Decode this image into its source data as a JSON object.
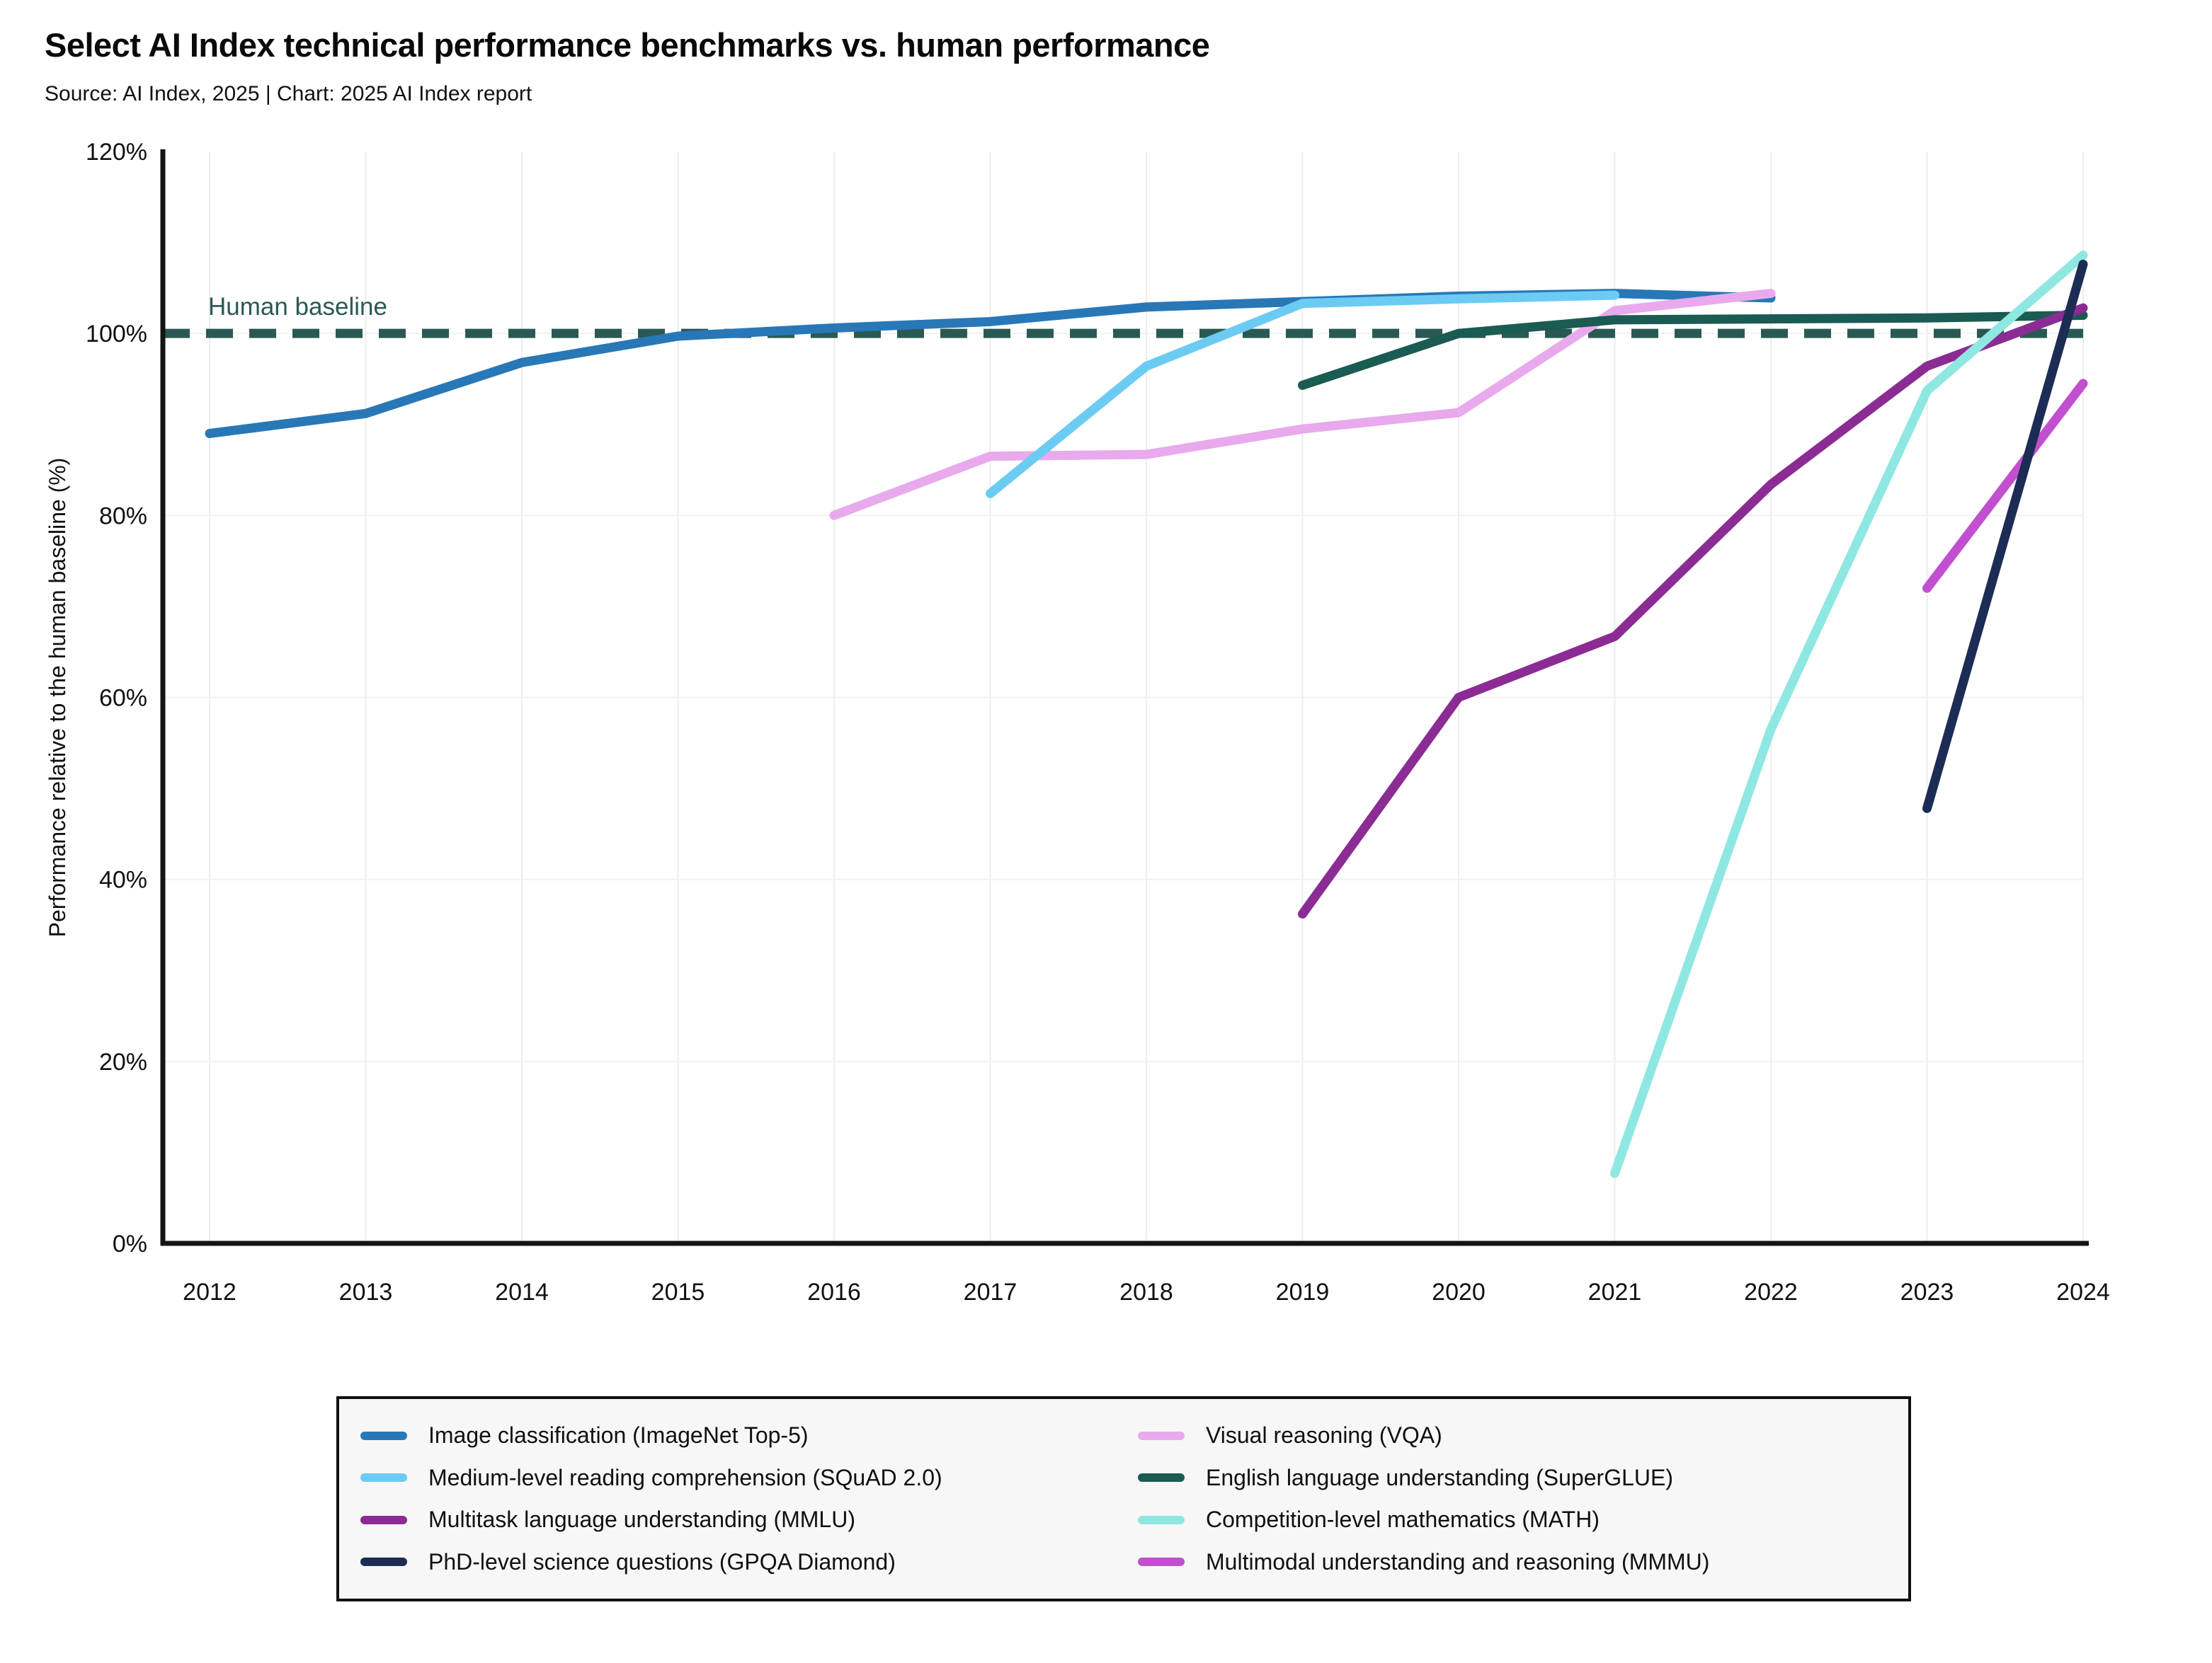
{
  "header": {
    "title": "Select AI Index technical performance benchmarks vs. human performance",
    "subtitle": "Source: AI Index, 2025 | Chart: 2025 AI Index report"
  },
  "chart_data": {
    "type": "line",
    "title": "Select AI Index technical performance benchmarks vs. human performance",
    "xlabel": "",
    "ylabel": "Performance relative to the human baseline (%)",
    "xlim": [
      2012,
      2024
    ],
    "ylim": [
      0,
      120
    ],
    "x_ticks": [
      2012,
      2013,
      2014,
      2015,
      2016,
      2017,
      2018,
      2019,
      2020,
      2021,
      2022,
      2023,
      2024
    ],
    "y_ticks": [
      0,
      20,
      40,
      60,
      80,
      100,
      120
    ],
    "y_tick_suffix": "%",
    "grid": true,
    "legend_position": "bottom",
    "human_baseline": {
      "label": "Human baseline",
      "value": 100,
      "style": "dashed",
      "color": "#2A5954"
    },
    "series": [
      {
        "id": "imagenet",
        "name": "Image classification (ImageNet Top-5)",
        "color": "#2878B7",
        "x": [
          2012,
          2013,
          2014,
          2015,
          2016,
          2017,
          2018,
          2019,
          2020,
          2021,
          2022
        ],
        "values": [
          89.0,
          91.2,
          96.8,
          99.7,
          100.6,
          101.3,
          102.9,
          103.5,
          104.1,
          104.4,
          103.9
        ]
      },
      {
        "id": "vqa",
        "name": "Visual reasoning (VQA)",
        "color": "#E8AAEC",
        "x": [
          2016,
          2017,
          2018,
          2019,
          2020,
          2021,
          2022
        ],
        "values": [
          80.0,
          86.5,
          86.7,
          89.5,
          91.3,
          102.5,
          104.4
        ]
      },
      {
        "id": "squad",
        "name": "Medium-level reading comprehension (SQuAD 2.0)",
        "color": "#6CCBF3",
        "x": [
          2017,
          2018,
          2019,
          2020,
          2021
        ],
        "values": [
          82.4,
          96.4,
          103.3,
          103.8,
          104.2
        ]
      },
      {
        "id": "superglue",
        "name": "English language understanding (SuperGLUE)",
        "color": "#1A5B52",
        "x": [
          2019,
          2020,
          2021,
          2022,
          2023,
          2024
        ],
        "values": [
          94.3,
          100.0,
          101.5,
          101.6,
          101.7,
          102.0
        ]
      },
      {
        "id": "mmlu",
        "name": "Multitask language understanding (MMLU)",
        "color": "#8B2C94",
        "x": [
          2019,
          2020,
          2021,
          2022,
          2023,
          2024
        ],
        "values": [
          36.2,
          60.0,
          66.7,
          83.4,
          96.4,
          102.8
        ]
      },
      {
        "id": "math",
        "name": "Competition-level mathematics (MATH)",
        "color": "#8FE7E2",
        "x": [
          2021,
          2022,
          2023,
          2024
        ],
        "values": [
          7.7,
          56.5,
          93.7,
          108.6
        ]
      },
      {
        "id": "mmmu",
        "name": "Multimodal understanding and reasoning (MMMU)",
        "color": "#C24FD0",
        "x": [
          2023,
          2024
        ],
        "values": [
          72.0,
          94.5
        ]
      },
      {
        "id": "gpqa",
        "name": "PhD-level science questions (GPQA Diamond)",
        "color": "#1C2C55",
        "x": [
          2023,
          2024
        ],
        "values": [
          47.8,
          107.6
        ]
      }
    ]
  },
  "legend": {
    "columns": 2,
    "items": [
      {
        "id": "imagenet",
        "label": "Image classification (ImageNet Top-5)",
        "color": "#2878B7"
      },
      {
        "id": "squad",
        "label": "Medium-level reading comprehension (SQuAD 2.0)",
        "color": "#6CCBF3"
      },
      {
        "id": "mmlu",
        "label": "Multitask language understanding (MMLU)",
        "color": "#8B2C94"
      },
      {
        "id": "gpqa",
        "label": "PhD-level science questions (GPQA Diamond)",
        "color": "#1C2C55"
      },
      {
        "id": "vqa",
        "label": "Visual reasoning (VQA)",
        "color": "#E8AAEC"
      },
      {
        "id": "superglue",
        "label": "English language understanding (SuperGLUE)",
        "color": "#1A5B52"
      },
      {
        "id": "math",
        "label": "Competition-level mathematics (MATH)",
        "color": "#8FE7E2"
      },
      {
        "id": "mmmu",
        "label": "Multimodal understanding and reasoning (MMMU)",
        "color": "#C24FD0"
      }
    ]
  }
}
